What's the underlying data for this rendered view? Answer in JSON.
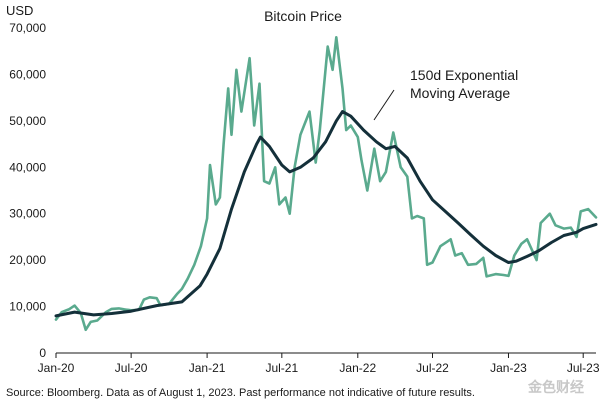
{
  "chart_data": {
    "type": "line",
    "title": "Bitcoin Price",
    "y_unit": "USD",
    "ylim": [
      0,
      70000
    ],
    "y_ticks": [
      0,
      10000,
      20000,
      30000,
      40000,
      50000,
      60000,
      70000
    ],
    "y_tick_labels": [
      "0",
      "10,000",
      "20,000",
      "30,000",
      "40,000",
      "50,000",
      "60,000",
      "70,000"
    ],
    "xlim": [
      "2020-01-01",
      "2023-08-01"
    ],
    "x_ticks": [
      "2020-01-01",
      "2020-07-01",
      "2021-01-01",
      "2021-07-01",
      "2022-01-01",
      "2022-07-01",
      "2023-01-01",
      "2023-07-01"
    ],
    "x_tick_labels": [
      "Jan-20",
      "Jul-20",
      "Jan-21",
      "Jul-21",
      "Jan-22",
      "Jul-22",
      "Jan-23",
      "Jul-23"
    ],
    "grid": false,
    "annotation": {
      "lines": [
        "150d Exponential",
        "Moving Average"
      ],
      "points_to_series": "150d Exponential Moving Average"
    },
    "source_note": "Source: Bloomberg. Data as of August 1, 2023. Past performance not indicative of future results.",
    "series": [
      {
        "color": "#5aaa8e",
        "points": [
          [
            "2020-01-01",
            7200
          ],
          [
            "2020-01-15",
            8800
          ],
          [
            "2020-02-01",
            9400
          ],
          [
            "2020-02-15",
            10200
          ],
          [
            "2020-03-01",
            8600
          ],
          [
            "2020-03-13",
            5000
          ],
          [
            "2020-03-25",
            6700
          ],
          [
            "2020-04-10",
            7000
          ],
          [
            "2020-05-01",
            8800
          ],
          [
            "2020-05-15",
            9500
          ],
          [
            "2020-06-01",
            9600
          ],
          [
            "2020-06-15",
            9400
          ],
          [
            "2020-07-01",
            9200
          ],
          [
            "2020-07-20",
            9300
          ],
          [
            "2020-08-01",
            11500
          ],
          [
            "2020-08-15",
            12000
          ],
          [
            "2020-09-01",
            11800
          ],
          [
            "2020-09-10",
            10300
          ],
          [
            "2020-10-01",
            10600
          ],
          [
            "2020-10-21",
            12800
          ],
          [
            "2020-11-01",
            13800
          ],
          [
            "2020-11-15",
            16000
          ],
          [
            "2020-12-01",
            19000
          ],
          [
            "2020-12-17",
            23000
          ],
          [
            "2021-01-01",
            29000
          ],
          [
            "2021-01-08",
            40500
          ],
          [
            "2021-01-22",
            32000
          ],
          [
            "2021-02-01",
            33500
          ],
          [
            "2021-02-10",
            45000
          ],
          [
            "2021-02-21",
            57000
          ],
          [
            "2021-03-01",
            47000
          ],
          [
            "2021-03-13",
            61000
          ],
          [
            "2021-03-25",
            52000
          ],
          [
            "2021-04-14",
            63500
          ],
          [
            "2021-04-25",
            49000
          ],
          [
            "2021-05-08",
            58000
          ],
          [
            "2021-05-19",
            37000
          ],
          [
            "2021-06-01",
            36500
          ],
          [
            "2021-06-15",
            40000
          ],
          [
            "2021-06-25",
            32000
          ],
          [
            "2021-07-10",
            33500
          ],
          [
            "2021-07-20",
            30000
          ],
          [
            "2021-08-01",
            40000
          ],
          [
            "2021-08-15",
            47000
          ],
          [
            "2021-09-06",
            52000
          ],
          [
            "2021-09-21",
            41000
          ],
          [
            "2021-10-01",
            48000
          ],
          [
            "2021-10-20",
            66000
          ],
          [
            "2021-11-01",
            61000
          ],
          [
            "2021-11-10",
            68000
          ],
          [
            "2021-11-25",
            57000
          ],
          [
            "2021-12-04",
            48000
          ],
          [
            "2021-12-15",
            49000
          ],
          [
            "2022-01-01",
            46500
          ],
          [
            "2022-01-10",
            41500
          ],
          [
            "2022-01-24",
            35000
          ],
          [
            "2022-02-10",
            44000
          ],
          [
            "2022-02-24",
            37000
          ],
          [
            "2022-03-10",
            39000
          ],
          [
            "2022-03-28",
            47500
          ],
          [
            "2022-04-15",
            40000
          ],
          [
            "2022-05-01",
            38000
          ],
          [
            "2022-05-12",
            29000
          ],
          [
            "2022-05-25",
            29500
          ],
          [
            "2022-06-10",
            29000
          ],
          [
            "2022-06-18",
            19000
          ],
          [
            "2022-07-01",
            19500
          ],
          [
            "2022-07-20",
            23000
          ],
          [
            "2022-08-14",
            24500
          ],
          [
            "2022-08-25",
            21000
          ],
          [
            "2022-09-10",
            21500
          ],
          [
            "2022-09-25",
            19000
          ],
          [
            "2022-10-15",
            19200
          ],
          [
            "2022-11-01",
            20500
          ],
          [
            "2022-11-09",
            16500
          ],
          [
            "2022-12-01",
            17000
          ],
          [
            "2022-12-20",
            16800
          ],
          [
            "2023-01-01",
            16600
          ],
          [
            "2023-01-15",
            21000
          ],
          [
            "2023-02-01",
            23500
          ],
          [
            "2023-02-15",
            24500
          ],
          [
            "2023-03-10",
            20000
          ],
          [
            "2023-03-20",
            28000
          ],
          [
            "2023-04-11",
            30000
          ],
          [
            "2023-04-25",
            27500
          ],
          [
            "2023-05-15",
            26800
          ],
          [
            "2023-06-01",
            27000
          ],
          [
            "2023-06-15",
            25000
          ],
          [
            "2023-06-25",
            30500
          ],
          [
            "2023-07-13",
            31000
          ],
          [
            "2023-08-01",
            29200
          ]
        ]
      },
      {
        "name": "150d Exponential Moving Average",
        "color": "#14303a",
        "points": [
          [
            "2020-01-01",
            8000
          ],
          [
            "2020-02-15",
            8800
          ],
          [
            "2020-04-01",
            8200
          ],
          [
            "2020-05-15",
            8500
          ],
          [
            "2020-07-01",
            9000
          ],
          [
            "2020-09-01",
            10200
          ],
          [
            "2020-11-01",
            11000
          ],
          [
            "2020-12-15",
            14500
          ],
          [
            "2021-01-01",
            17000
          ],
          [
            "2021-02-01",
            22500
          ],
          [
            "2021-03-01",
            31000
          ],
          [
            "2021-04-01",
            39000
          ],
          [
            "2021-05-01",
            45000
          ],
          [
            "2021-05-10",
            46500
          ],
          [
            "2021-06-01",
            44500
          ],
          [
            "2021-07-01",
            40500
          ],
          [
            "2021-07-20",
            39000
          ],
          [
            "2021-08-15",
            40000
          ],
          [
            "2021-09-15",
            42000
          ],
          [
            "2021-10-15",
            45500
          ],
          [
            "2021-11-10",
            50000
          ],
          [
            "2021-11-25",
            52000
          ],
          [
            "2021-12-15",
            51000
          ],
          [
            "2022-01-15",
            48000
          ],
          [
            "2022-02-15",
            45500
          ],
          [
            "2022-03-10",
            44000
          ],
          [
            "2022-04-01",
            44500
          ],
          [
            "2022-05-01",
            42000
          ],
          [
            "2022-06-01",
            37000
          ],
          [
            "2022-07-01",
            33000
          ],
          [
            "2022-08-01",
            30500
          ],
          [
            "2022-09-01",
            28000
          ],
          [
            "2022-10-01",
            25500
          ],
          [
            "2022-11-01",
            23000
          ],
          [
            "2022-12-01",
            21000
          ],
          [
            "2023-01-01",
            19500
          ],
          [
            "2023-01-20",
            19800
          ],
          [
            "2023-02-15",
            20800
          ],
          [
            "2023-03-15",
            22000
          ],
          [
            "2023-04-15",
            23800
          ],
          [
            "2023-05-15",
            25300
          ],
          [
            "2023-06-15",
            26000
          ],
          [
            "2023-07-01",
            26800
          ],
          [
            "2023-08-01",
            27700
          ]
        ]
      }
    ]
  }
}
